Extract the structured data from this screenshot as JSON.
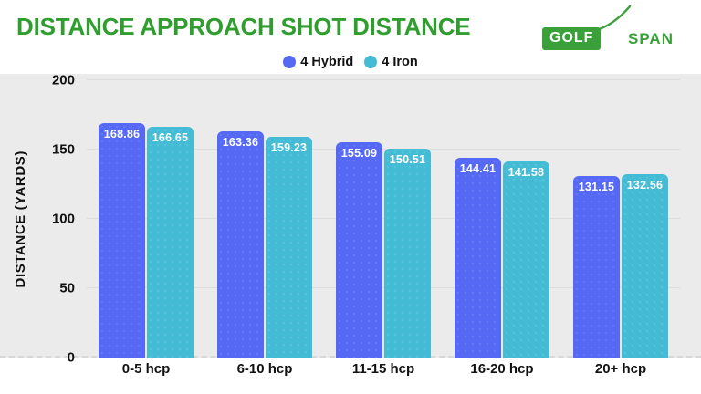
{
  "header": {
    "title": "DISTANCE APPROACH SHOT DISTANCE",
    "logo": {
      "primary": "GOLF",
      "secondary": "SPAN"
    }
  },
  "colors": {
    "title_green": "#2f9e2f",
    "logo_green": "#3aa03a",
    "hybrid_blue": "#5569f5",
    "iron_cyan": "#45bcd6",
    "chart_background": "#ebebeb",
    "gridline": "#dcdcdc",
    "value_label": "#ffffff",
    "axis_text": "#111111"
  },
  "chart_data": {
    "type": "bar",
    "title": "DISTANCE APPROACH SHOT DISTANCE",
    "categories": [
      "0-5 hcp",
      "6-10 hcp",
      "11-15 hcp",
      "16-20 hcp",
      "20+ hcp"
    ],
    "series": [
      {
        "name": "4 Hybrid",
        "color": "#5569f5",
        "values": [
          168.86,
          163.36,
          155.09,
          144.41,
          131.15
        ]
      },
      {
        "name": "4 Iron",
        "color": "#45bcd6",
        "values": [
          166.65,
          159.23,
          150.51,
          141.58,
          132.56
        ]
      }
    ],
    "xlabel": "",
    "ylabel": "DISTANCE (YARDS)",
    "ylim": [
      0,
      200
    ],
    "yticks": [
      0,
      50,
      100,
      150,
      200
    ],
    "grid": true,
    "legend_position": "top-center",
    "value_labels": true,
    "value_label_format": "2-decimals"
  }
}
